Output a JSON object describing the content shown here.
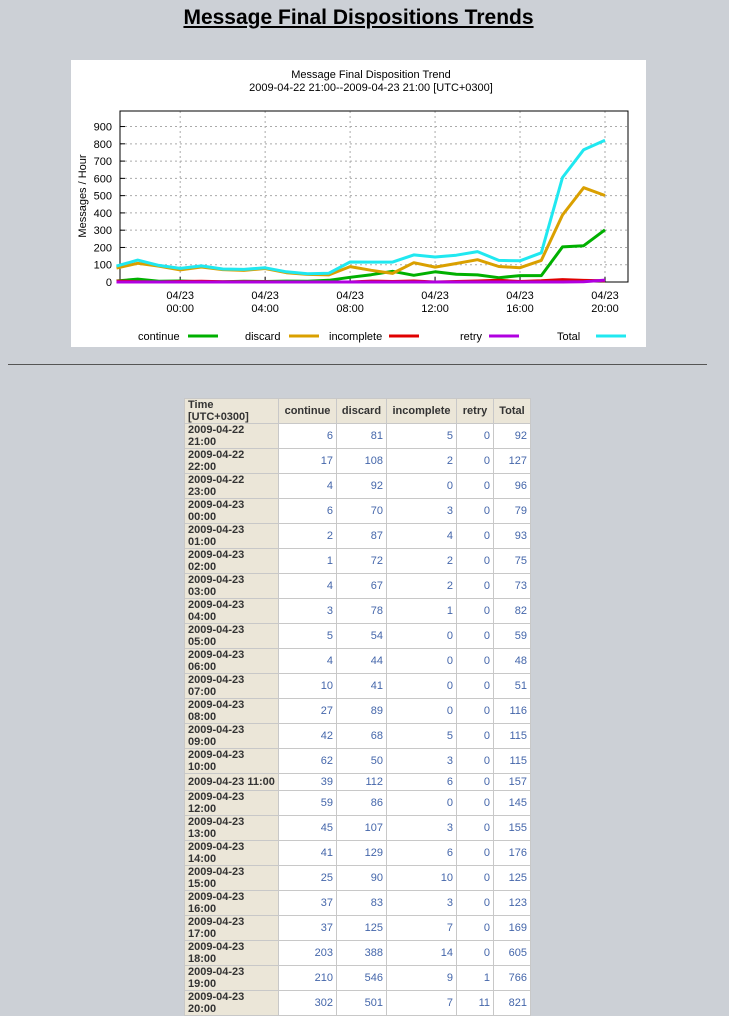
{
  "header": {
    "title": "Message Final Dispositions Trends"
  },
  "chart_data": {
    "type": "line",
    "title": "Message Final Disposition Trend",
    "subtitle": "2009-04-22 21:00--2009-04-23 21:00 [UTC+0300]",
    "y_label": "Messages / Hour",
    "ylim": [
      0,
      990
    ],
    "yticks": [
      0,
      100,
      200,
      300,
      400,
      500,
      600,
      700,
      800,
      900
    ],
    "xlim": [
      "2009-04-22 21:10",
      "2009-04-23 21:05"
    ],
    "xticks": [
      {
        "value": "2009-04-23 00:00",
        "date": "04/23",
        "time": "00:00"
      },
      {
        "value": "2009-04-23 04:00",
        "date": "04/23",
        "time": "04:00"
      },
      {
        "value": "2009-04-23 08:00",
        "date": "04/23",
        "time": "08:00"
      },
      {
        "value": "2009-04-23 12:00",
        "date": "04/23",
        "time": "12:00"
      },
      {
        "value": "2009-04-23 16:00",
        "date": "04/23",
        "time": "16:00"
      },
      {
        "value": "2009-04-23 20:00",
        "date": "04/23",
        "time": "20:00"
      }
    ],
    "grid": true,
    "x": [
      "2009-04-22 21:00",
      "2009-04-22 22:00",
      "2009-04-22 23:00",
      "2009-04-23 00:00",
      "2009-04-23 01:00",
      "2009-04-23 02:00",
      "2009-04-23 03:00",
      "2009-04-23 04:00",
      "2009-04-23 05:00",
      "2009-04-23 06:00",
      "2009-04-23 07:00",
      "2009-04-23 08:00",
      "2009-04-23 09:00",
      "2009-04-23 10:00",
      "2009-04-23 11:00",
      "2009-04-23 12:00",
      "2009-04-23 13:00",
      "2009-04-23 14:00",
      "2009-04-23 15:00",
      "2009-04-23 16:00",
      "2009-04-23 17:00",
      "2009-04-23 18:00",
      "2009-04-23 19:00",
      "2009-04-23 20:00"
    ],
    "series": [
      {
        "name": "continue",
        "color": "#00b000",
        "values": [
          6,
          17,
          4,
          6,
          2,
          1,
          4,
          3,
          5,
          4,
          10,
          27,
          42,
          62,
          39,
          59,
          45,
          41,
          25,
          37,
          37,
          203,
          210,
          302
        ]
      },
      {
        "name": "discard",
        "color": "#daa000",
        "values": [
          81,
          108,
          92,
          70,
          87,
          72,
          67,
          78,
          54,
          44,
          41,
          89,
          68,
          50,
          112,
          86,
          107,
          129,
          90,
          83,
          125,
          388,
          546,
          501
        ]
      },
      {
        "name": "incomplete",
        "color": "#e00000",
        "values": [
          5,
          2,
          0,
          3,
          4,
          2,
          2,
          1,
          0,
          0,
          0,
          0,
          5,
          3,
          6,
          0,
          3,
          6,
          10,
          3,
          7,
          14,
          9,
          7
        ]
      },
      {
        "name": "retry",
        "color": "#b000e0",
        "values": [
          0,
          0,
          0,
          0,
          0,
          0,
          0,
          0,
          0,
          0,
          0,
          0,
          0,
          0,
          0,
          0,
          0,
          0,
          0,
          0,
          0,
          0,
          1,
          11
        ]
      },
      {
        "name": "Total",
        "color": "#20e8f0",
        "values": [
          92,
          127,
          96,
          79,
          93,
          75,
          73,
          82,
          59,
          48,
          51,
          116,
          115,
          115,
          157,
          145,
          155,
          176,
          125,
          123,
          169,
          605,
          766,
          821
        ]
      }
    ]
  },
  "table": {
    "time_header": "Time [UTC+0300]"
  }
}
